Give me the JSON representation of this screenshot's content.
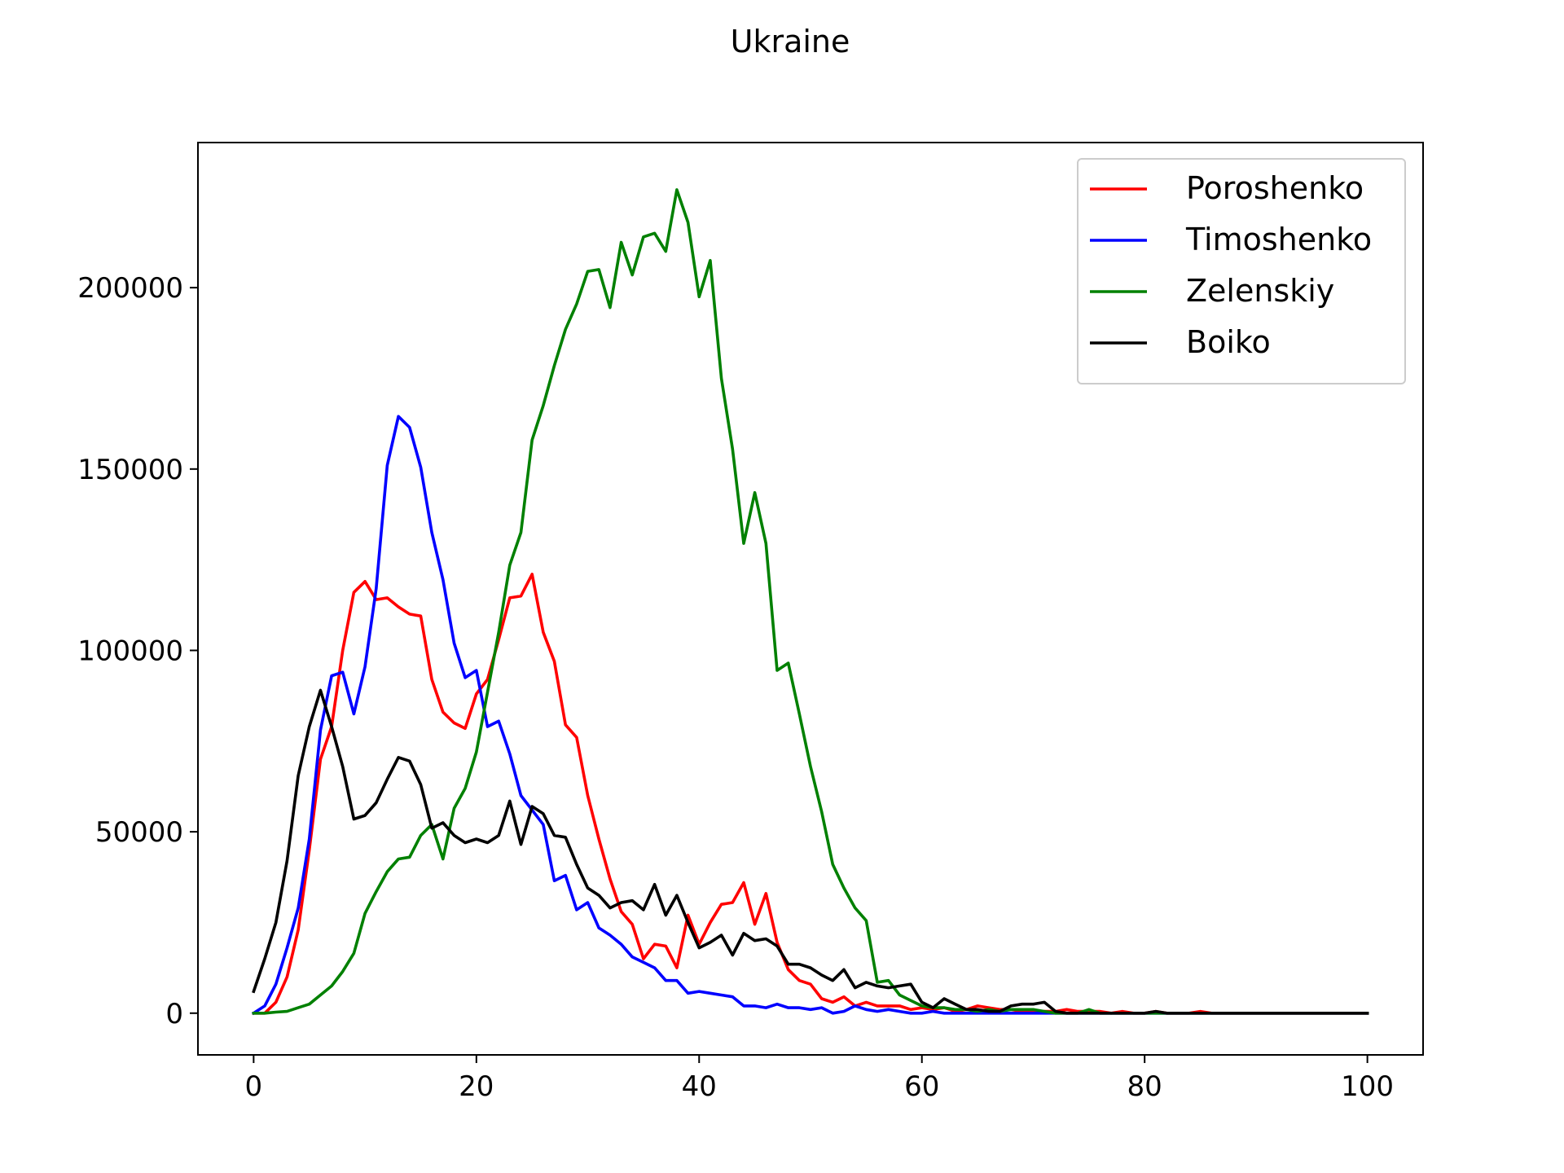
{
  "chart_data": {
    "type": "line",
    "title": "Ukraine",
    "xlabel": "",
    "ylabel": "",
    "xlim": [
      -5,
      105
    ],
    "ylim": [
      -11500,
      240000
    ],
    "xticks": [
      0,
      20,
      40,
      60,
      80,
      100
    ],
    "yticks": [
      0,
      50000,
      100000,
      150000,
      200000
    ],
    "x_tick_labels": [
      "0",
      "20",
      "40",
      "60",
      "80",
      "100"
    ],
    "y_tick_labels": [
      "0",
      "50000",
      "100000",
      "150000",
      "200000"
    ],
    "grid": false,
    "legend_position": "top-right",
    "x": [
      0,
      1,
      2,
      3,
      4,
      5,
      6,
      7,
      8,
      9,
      10,
      11,
      12,
      13,
      14,
      15,
      16,
      17,
      18,
      19,
      20,
      21,
      22,
      23,
      24,
      25,
      26,
      27,
      28,
      29,
      30,
      31,
      32,
      33,
      34,
      35,
      36,
      37,
      38,
      39,
      40,
      41,
      42,
      43,
      44,
      45,
      46,
      47,
      48,
      49,
      50,
      51,
      52,
      53,
      54,
      55,
      56,
      57,
      58,
      59,
      60,
      61,
      62,
      63,
      64,
      65,
      66,
      67,
      68,
      69,
      70,
      71,
      72,
      73,
      74,
      75,
      76,
      77,
      78,
      79,
      80,
      81,
      82,
      83,
      84,
      85,
      86,
      87,
      88,
      89,
      90,
      91,
      92,
      93,
      94,
      95,
      96,
      97,
      98,
      99,
      100
    ],
    "series": [
      {
        "name": "Poroshenko",
        "color": "#ff0000",
        "values": [
          0,
          0,
          3000,
          10000,
          23000,
          45000,
          70000,
          79000,
          100000,
          116000,
          119000,
          114000,
          114500,
          112000,
          110000,
          109500,
          92000,
          83000,
          80000,
          78500,
          88000,
          92000,
          103000,
          114500,
          115000,
          121000,
          105000,
          97000,
          79500,
          76000,
          60000,
          48000,
          37000,
          28000,
          24500,
          15000,
          19000,
          18500,
          12500,
          27000,
          19000,
          25000,
          30000,
          30500,
          36000,
          24500,
          33000,
          19500,
          12000,
          9000,
          8000,
          4000,
          3000,
          4500,
          2000,
          3000,
          2000,
          2000,
          2000,
          1000,
          1500,
          1000,
          1500,
          500,
          1000,
          2000,
          1500,
          1000,
          1000,
          500,
          500,
          500,
          500,
          1000,
          500,
          500,
          500,
          0,
          500,
          0,
          0,
          500,
          0,
          0,
          0,
          500,
          0,
          0,
          0,
          0,
          0,
          0,
          0,
          0,
          0,
          0,
          0,
          0,
          0,
          0,
          0
        ]
      },
      {
        "name": "Timoshenko",
        "color": "#0000ff",
        "values": [
          0,
          2000,
          8000,
          18000,
          29000,
          48000,
          78000,
          93000,
          94000,
          82500,
          95500,
          117000,
          151000,
          164500,
          161500,
          150500,
          132500,
          119500,
          102000,
          92500,
          94500,
          79000,
          80500,
          71500,
          60000,
          56000,
          52000,
          36500,
          38000,
          28500,
          30500,
          23500,
          21500,
          19000,
          15500,
          14000,
          12500,
          9000,
          9000,
          5500,
          6000,
          5500,
          5000,
          4500,
          2000,
          2000,
          1500,
          2500,
          1500,
          1500,
          1000,
          1500,
          0,
          500,
          2000,
          1000,
          500,
          1000,
          500,
          0,
          0,
          500,
          0,
          0,
          0,
          0,
          0,
          0,
          0,
          0,
          0,
          0,
          0,
          0,
          0,
          0,
          0,
          0,
          0,
          0,
          0,
          0,
          0,
          0,
          0,
          0,
          0,
          0,
          0,
          0,
          0,
          0,
          0,
          0,
          0,
          0,
          0,
          0,
          0,
          0,
          0
        ]
      },
      {
        "name": "Zelenskiy",
        "color": "#008000",
        "values": [
          0,
          0,
          300,
          500,
          1500,
          2500,
          5000,
          7500,
          11500,
          16500,
          27500,
          33500,
          39000,
          42500,
          43000,
          49000,
          52000,
          42500,
          56500,
          62000,
          72000,
          88500,
          105000,
          123500,
          132500,
          158000,
          167500,
          178500,
          188500,
          195500,
          204500,
          205000,
          194500,
          212500,
          203500,
          214000,
          215000,
          210000,
          227000,
          218000,
          197500,
          207500,
          175000,
          155500,
          129500,
          143500,
          129500,
          94500,
          96500,
          82500,
          68000,
          55500,
          41000,
          34500,
          29000,
          25500,
          8500,
          9000,
          5000,
          3500,
          2000,
          1500,
          1500,
          1000,
          1000,
          500,
          1000,
          500,
          1000,
          1000,
          1000,
          500,
          0,
          0,
          0,
          1000,
          0,
          0,
          0,
          0,
          0,
          0,
          0,
          0,
          0,
          0,
          0,
          0,
          0,
          0,
          0,
          0,
          0,
          0,
          0,
          0,
          0,
          0,
          0,
          0,
          0
        ]
      },
      {
        "name": "Boiko",
        "color": "#000000",
        "values": [
          6000,
          15000,
          25000,
          42000,
          65500,
          79000,
          89000,
          79000,
          68000,
          53500,
          54500,
          58000,
          64500,
          70500,
          69500,
          63000,
          51000,
          52500,
          49000,
          47000,
          48000,
          47000,
          49000,
          58500,
          46500,
          57000,
          55000,
          49000,
          48500,
          41000,
          34500,
          32500,
          29000,
          30500,
          31000,
          28500,
          35500,
          27000,
          32500,
          25000,
          18000,
          19500,
          21500,
          16000,
          22000,
          20000,
          20500,
          18500,
          13500,
          13500,
          12500,
          10500,
          9000,
          12000,
          7000,
          8500,
          7500,
          7000,
          7500,
          8000,
          3000,
          1500,
          4000,
          2500,
          1000,
          1000,
          500,
          500,
          2000,
          2500,
          2500,
          3000,
          500,
          0,
          0,
          0,
          0,
          0,
          0,
          0,
          0,
          500,
          0,
          0,
          0,
          0,
          0,
          0,
          0,
          0,
          0,
          0,
          0,
          0,
          0,
          0,
          0,
          0,
          0,
          0,
          0
        ]
      }
    ]
  }
}
